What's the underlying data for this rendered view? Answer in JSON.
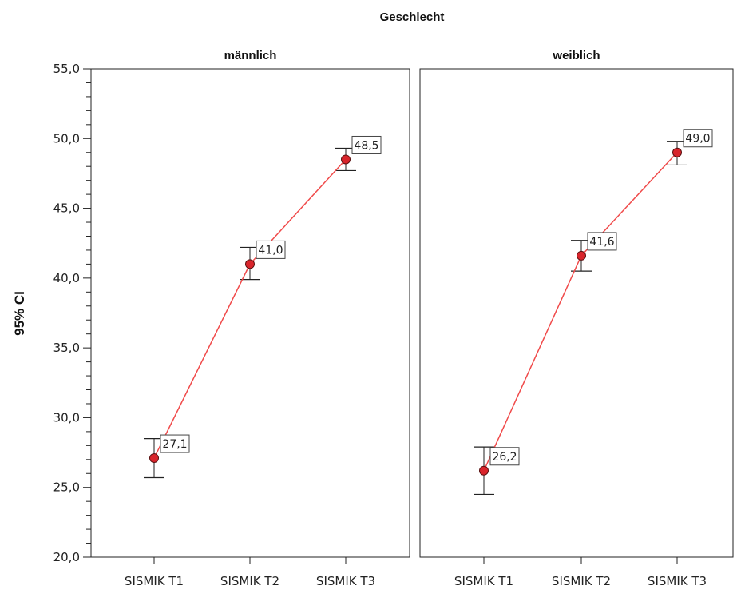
{
  "chart_data": {
    "type": "line",
    "title": "Geschlecht",
    "ylabel": "95% CI",
    "ylim": [
      20,
      55
    ],
    "yticks": [
      "20,0",
      "25,0",
      "30,0",
      "35,0",
      "40,0",
      "45,0",
      "50,0",
      "55,0"
    ],
    "categories": [
      "SISMIK T1",
      "SISMIK T2",
      "SISMIK T3"
    ],
    "panels": [
      {
        "name": "männlich",
        "values": [
          27.1,
          41.0,
          48.5
        ],
        "labels": [
          "27,1",
          "41,0",
          "48,5"
        ],
        "ci_low": [
          25.7,
          39.9,
          47.7
        ],
        "ci_high": [
          28.5,
          42.2,
          49.3
        ]
      },
      {
        "name": "weiblich",
        "values": [
          26.2,
          41.6,
          49.0
        ],
        "labels": [
          "26,2",
          "41,6",
          "49,0"
        ],
        "ci_low": [
          24.5,
          40.5,
          48.1
        ],
        "ci_high": [
          27.9,
          42.7,
          49.8
        ]
      }
    ],
    "colors": {
      "line": "#f04a4a",
      "marker": "#d9242b",
      "marker_edge": "#5a1010",
      "errorbar": "#222222"
    }
  }
}
